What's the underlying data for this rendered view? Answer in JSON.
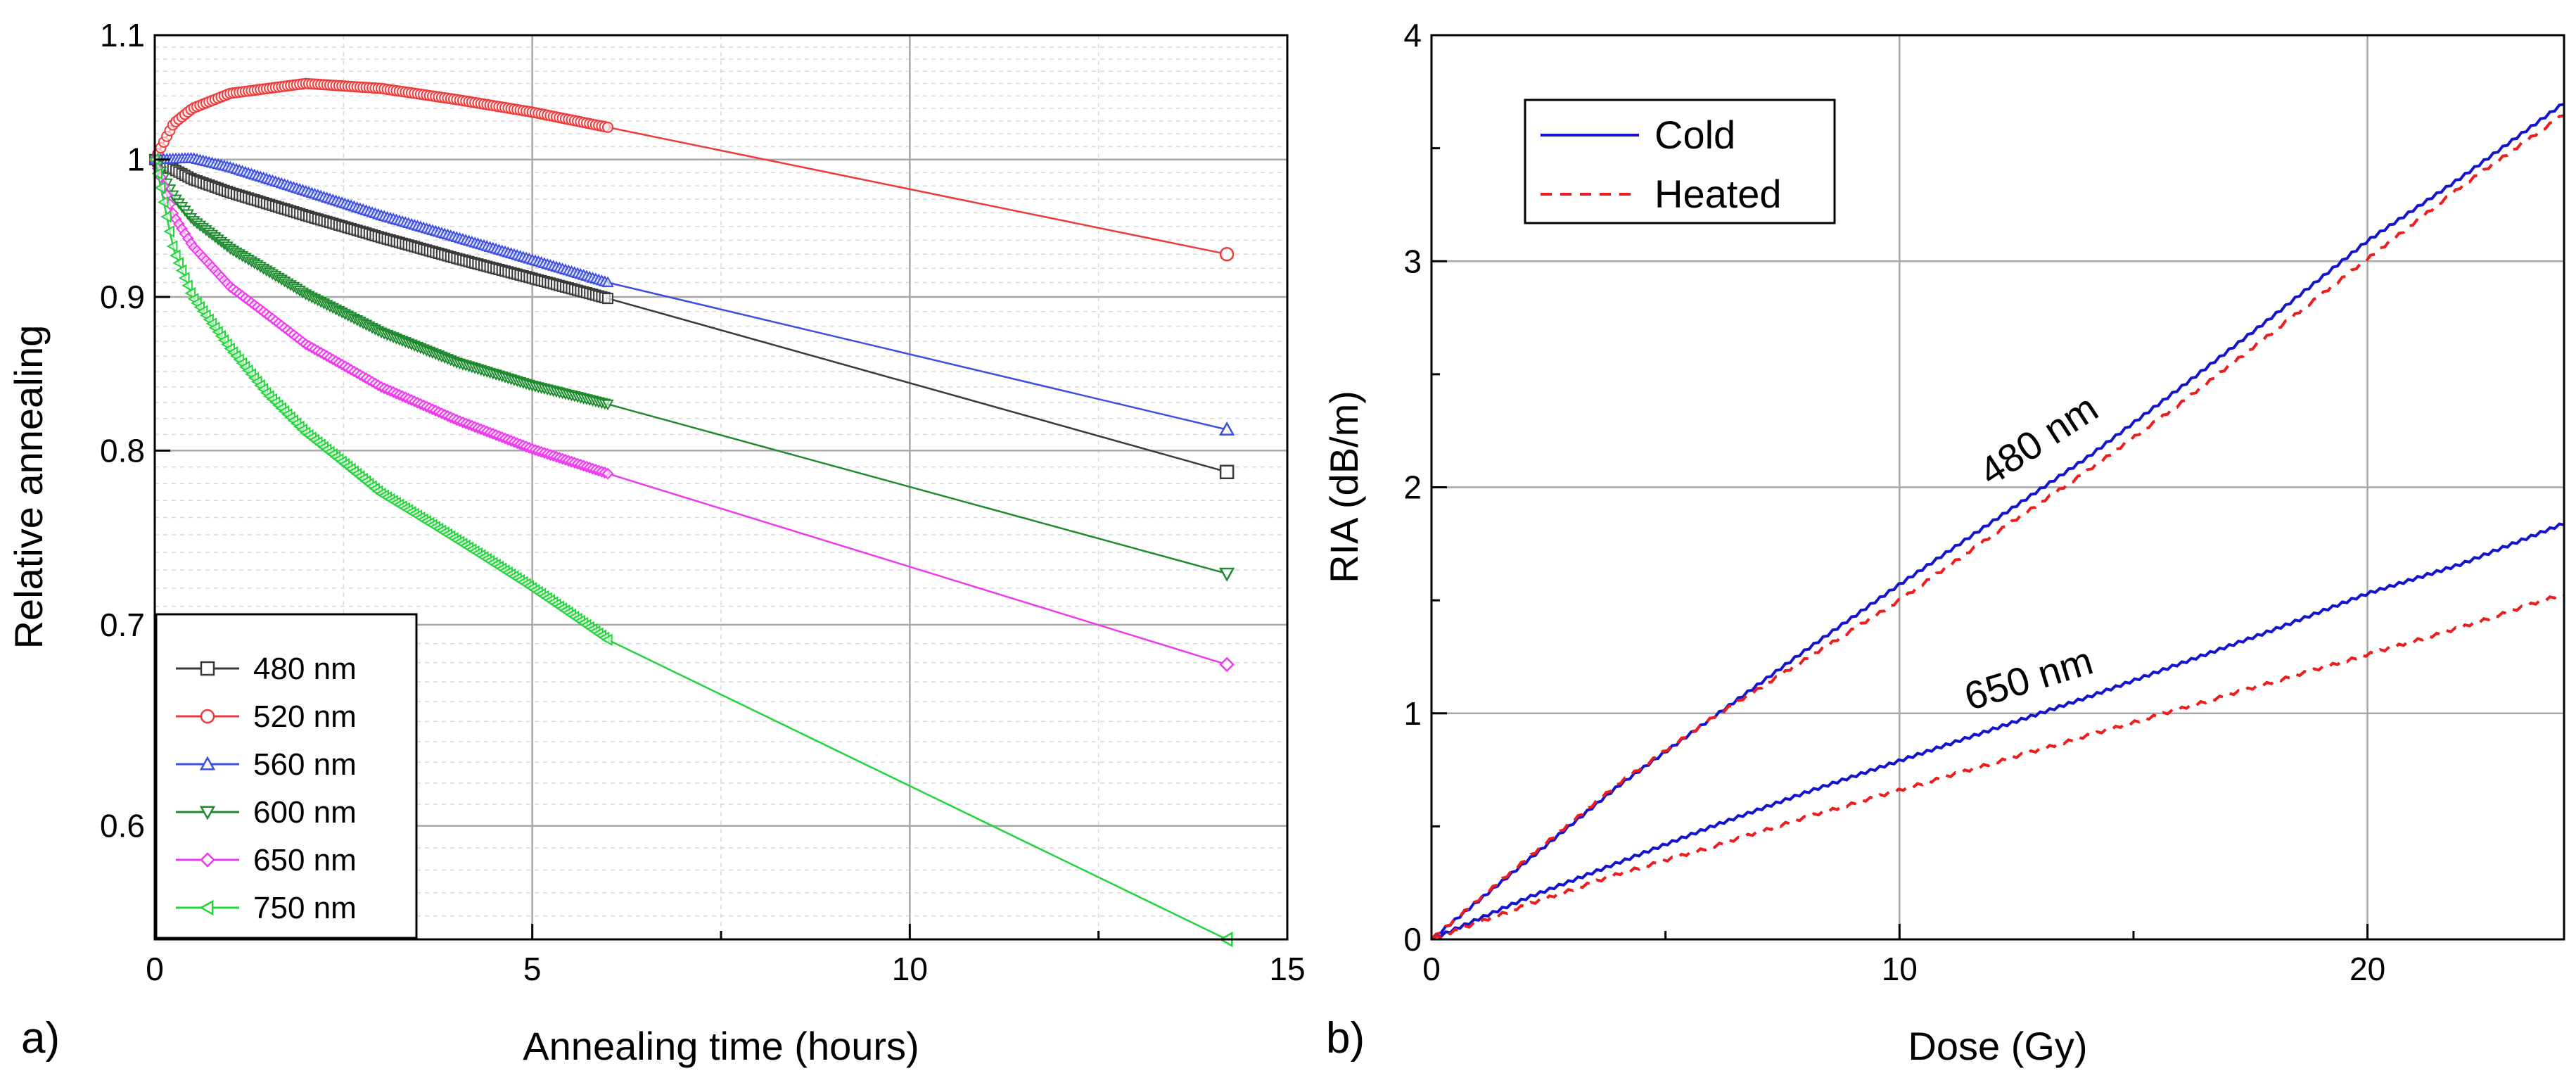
{
  "panel_a": {
    "label": "a)",
    "legend": [
      {
        "name": "480 nm",
        "color": "#3a3a3a",
        "marker": "square"
      },
      {
        "name": "520 nm",
        "color": "#ee3a3a",
        "marker": "circle"
      },
      {
        "name": "560 nm",
        "color": "#3d4fe0",
        "marker": "triangle-up"
      },
      {
        "name": "600 nm",
        "color": "#1e8a2e",
        "marker": "triangle-down"
      },
      {
        "name": "650 nm",
        "color": "#ee3aee",
        "marker": "diamond"
      },
      {
        "name": "750 nm",
        "color": "#22d43a",
        "marker": "triangle-left"
      }
    ],
    "xticks": [
      "0",
      "5",
      "10",
      "15"
    ],
    "yticks": [
      "0.6",
      "0.7",
      "0.8",
      "0.9",
      "1",
      "1.1"
    ]
  },
  "panel_b": {
    "label": "b)",
    "legend": [
      {
        "name": "Cold",
        "color": "#1414d0",
        "style": "solid"
      },
      {
        "name": "Heated",
        "color": "#ee1c1c",
        "style": "dashed"
      }
    ],
    "xticks": [
      "0",
      "10",
      "20"
    ],
    "yticks": [
      "0",
      "1",
      "2",
      "3",
      "4"
    ],
    "curve_labels": [
      "480 nm",
      "650 nm"
    ]
  },
  "chart_data": [
    {
      "type": "line",
      "title": "",
      "xlabel": "Annealing time (hours)",
      "ylabel": "Relative annealing",
      "xlim": [
        0,
        15
      ],
      "ylim": [
        0.55,
        1.1
      ],
      "yscale": "log",
      "grid": true,
      "legend_position": "bottom-left",
      "series": [
        {
          "name": "480 nm",
          "x": [
            0,
            0.5,
            1,
            2,
            3,
            4,
            5,
            6,
            14.2
          ],
          "y": [
            1.0,
            0.985,
            0.975,
            0.958,
            0.942,
            0.927,
            0.913,
            0.899,
            0.787
          ]
        },
        {
          "name": "520 nm",
          "x": [
            0,
            0.25,
            0.5,
            1,
            2,
            3,
            4,
            5,
            6,
            14.2
          ],
          "y": [
            1.0,
            1.028,
            1.04,
            1.052,
            1.06,
            1.056,
            1.047,
            1.037,
            1.025,
            0.93
          ]
        },
        {
          "name": "560 nm",
          "x": [
            0,
            0.5,
            1,
            2,
            3,
            4,
            5,
            6,
            14.2
          ],
          "y": [
            1.0,
            1.001,
            0.994,
            0.976,
            0.958,
            0.942,
            0.926,
            0.91,
            0.813
          ]
        },
        {
          "name": "600 nm",
          "x": [
            0,
            0.25,
            0.5,
            1,
            2,
            3,
            4,
            5,
            6,
            14.2
          ],
          "y": [
            1.0,
            0.972,
            0.955,
            0.934,
            0.902,
            0.876,
            0.856,
            0.841,
            0.829,
            0.728
          ]
        },
        {
          "name": "650 nm",
          "x": [
            0,
            0.25,
            0.5,
            1,
            2,
            3,
            4,
            5,
            6,
            14.2
          ],
          "y": [
            1.0,
            0.958,
            0.936,
            0.907,
            0.868,
            0.84,
            0.819,
            0.801,
            0.786,
            0.679
          ]
        },
        {
          "name": "750 nm",
          "x": [
            0,
            0.25,
            0.5,
            1,
            1.5,
            2,
            3,
            4,
            5,
            6,
            14.2
          ],
          "y": [
            1.0,
            0.933,
            0.9,
            0.865,
            0.835,
            0.811,
            0.774,
            0.747,
            0.72,
            0.692,
            0.55
          ]
        }
      ]
    },
    {
      "type": "line",
      "title": "",
      "xlabel": "Dose (Gy)",
      "ylabel": "RIA (dB/m)",
      "xlim": [
        0,
        24.2
      ],
      "ylim": [
        0,
        4
      ],
      "grid": true,
      "legend_position": "top-left",
      "series": [
        {
          "name": "Cold 480 nm",
          "x": [
            0,
            2,
            4,
            6,
            8,
            10,
            12,
            14,
            16,
            18,
            20,
            22,
            24.2
          ],
          "y": [
            0,
            0.34,
            0.68,
            0.98,
            1.28,
            1.57,
            1.85,
            2.13,
            2.44,
            2.76,
            3.09,
            3.37,
            3.7
          ]
        },
        {
          "name": "Heated 480 nm",
          "x": [
            0,
            2,
            4,
            6,
            8,
            10,
            12,
            14,
            16,
            18,
            20,
            22,
            24.2
          ],
          "y": [
            0,
            0.35,
            0.69,
            0.98,
            1.24,
            1.5,
            1.79,
            2.07,
            2.37,
            2.69,
            3.01,
            3.33,
            3.65
          ]
        },
        {
          "name": "Cold 650 nm",
          "x": [
            0,
            2,
            4,
            6,
            8,
            10,
            12,
            14,
            16,
            18,
            20,
            22,
            24.2
          ],
          "y": [
            0,
            0.18,
            0.34,
            0.5,
            0.65,
            0.79,
            0.93,
            1.07,
            1.22,
            1.37,
            1.53,
            1.66,
            1.84
          ]
        },
        {
          "name": "Heated 650 nm",
          "x": [
            0,
            2,
            4,
            6,
            8,
            10,
            12,
            14,
            16,
            18,
            20,
            22,
            24.2
          ],
          "y": [
            0,
            0.15,
            0.29,
            0.41,
            0.54,
            0.66,
            0.78,
            0.9,
            1.02,
            1.14,
            1.26,
            1.38,
            1.53
          ]
        }
      ],
      "annotations": [
        "480 nm",
        "650 nm"
      ]
    }
  ]
}
